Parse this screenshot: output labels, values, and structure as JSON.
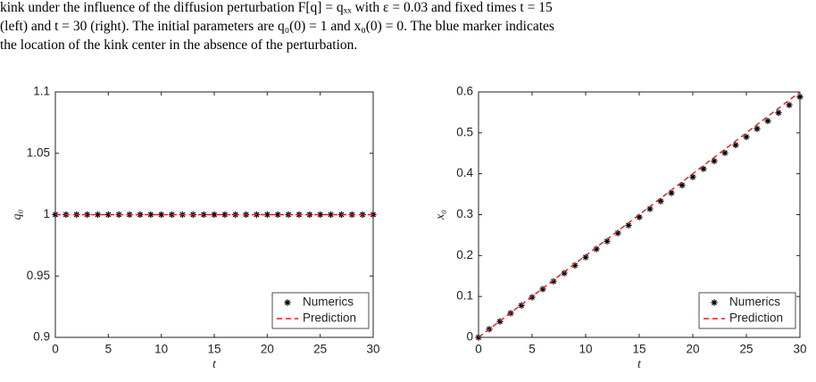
{
  "caption": [
    "kink under the influence of the diffusion perturbation F[q] = qₓₓ with ε = 0.03 and fixed times t = 15",
    "(left) and t = 30 (right). The initial parameters are q₀(0) = 1 and x₀(0) = 0. The blue marker indicates",
    "the location of the kink center in the absence of the perturbation."
  ],
  "chart_data": [
    {
      "type": "line",
      "x_label": "t",
      "y_label": "q₀",
      "xlim": [
        0,
        30
      ],
      "xticks": [
        0,
        5,
        10,
        15,
        20,
        25,
        30
      ],
      "ylim": [
        0.9,
        1.1
      ],
      "yticks": [
        0.9,
        0.95,
        1,
        1.05,
        1.1
      ],
      "legend": "lower right",
      "series": [
        {
          "name": "Numerics",
          "color": "#000000",
          "marker": "star",
          "line": "none",
          "x": [
            0,
            1,
            2,
            3,
            4,
            5,
            6,
            7,
            8,
            9,
            10,
            11,
            12,
            13,
            14,
            15,
            16,
            17,
            18,
            19,
            20,
            21,
            22,
            23,
            24,
            25,
            26,
            27,
            28,
            29,
            30
          ],
          "values": [
            1,
            1,
            1,
            1,
            1,
            1,
            1,
            1,
            1,
            1,
            1,
            1,
            1,
            1,
            1,
            1,
            1,
            1,
            1,
            1,
            1,
            1,
            1,
            1,
            1,
            1,
            1,
            1,
            1,
            1,
            1
          ]
        },
        {
          "name": "Prediction",
          "color": "#e41a1c",
          "marker": "none",
          "line": "dashed",
          "x": [
            0,
            30
          ],
          "values": [
            1,
            1
          ]
        }
      ]
    },
    {
      "type": "line",
      "x_label": "t",
      "y_label": "x₀",
      "xlim": [
        0,
        30
      ],
      "xticks": [
        0,
        5,
        10,
        15,
        20,
        25,
        30
      ],
      "ylim": [
        0,
        0.6
      ],
      "yticks": [
        0,
        0.1,
        0.2,
        0.3,
        0.4,
        0.5,
        0.6
      ],
      "legend": "lower right",
      "series": [
        {
          "name": "Numerics",
          "color": "#000000",
          "marker": "star",
          "line": "none",
          "x": [
            0,
            1,
            2,
            3,
            4,
            5,
            6,
            7,
            8,
            9,
            10,
            11,
            12,
            13,
            14,
            15,
            16,
            17,
            18,
            19,
            20,
            21,
            22,
            23,
            24,
            25,
            26,
            27,
            28,
            29,
            30
          ],
          "values": [
            0,
            0.02,
            0.039,
            0.059,
            0.078,
            0.098,
            0.118,
            0.137,
            0.157,
            0.176,
            0.196,
            0.216,
            0.235,
            0.255,
            0.274,
            0.294,
            0.314,
            0.333,
            0.353,
            0.372,
            0.392,
            0.412,
            0.431,
            0.451,
            0.47,
            0.49,
            0.51,
            0.529,
            0.549,
            0.568,
            0.588
          ]
        },
        {
          "name": "Prediction",
          "color": "#e41a1c",
          "marker": "none",
          "line": "dashed",
          "x": [
            0,
            30
          ],
          "values": [
            0,
            0.6
          ]
        }
      ]
    }
  ]
}
